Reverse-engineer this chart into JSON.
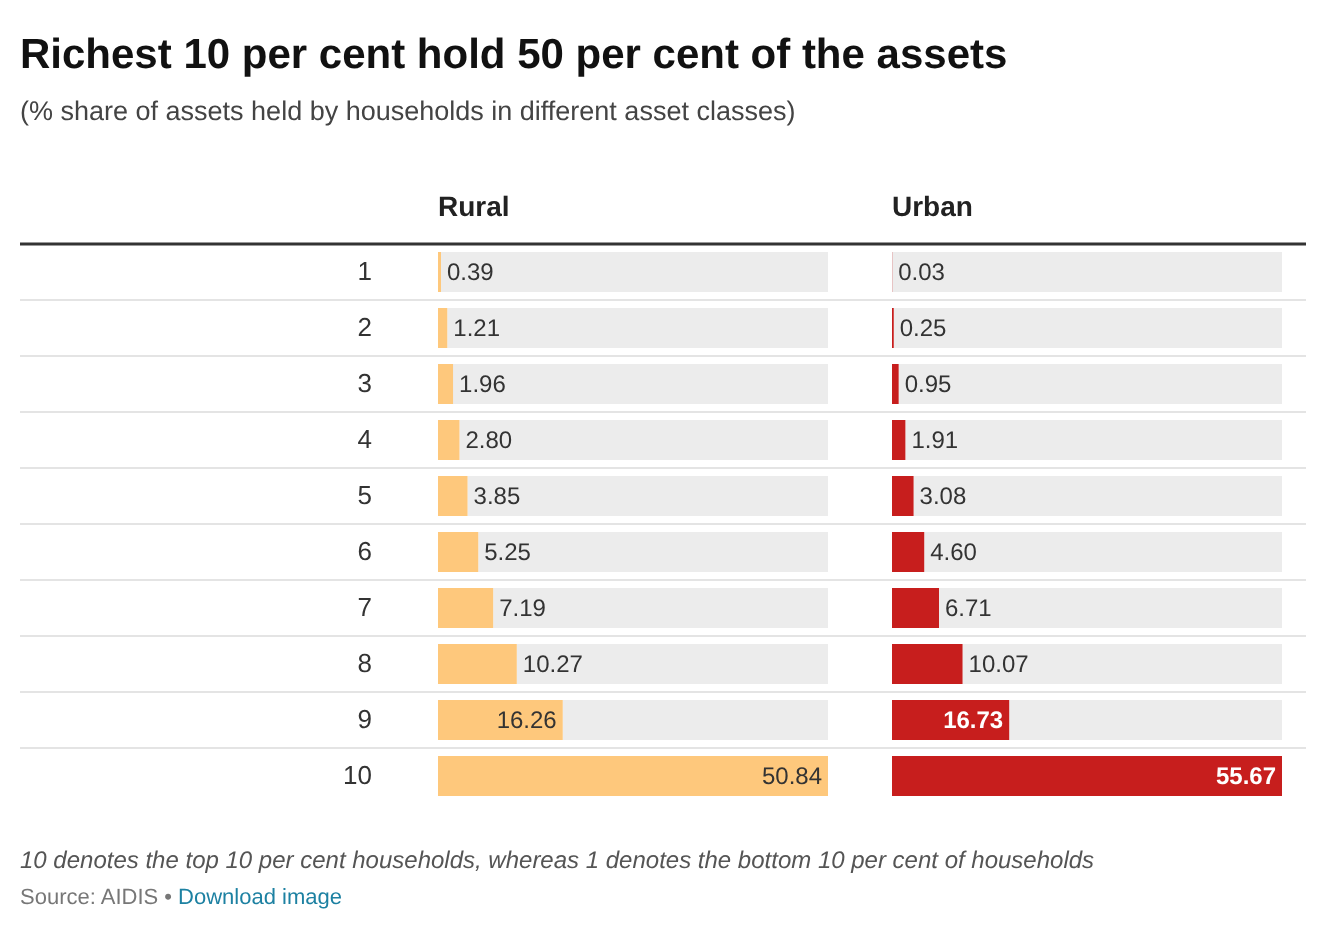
{
  "chart_data": [
    {
      "type": "bar",
      "orientation": "horizontal",
      "title": "Richest 10 per cent hold 50 per cent of the assets",
      "subtitle": "(% share of assets held by households in different asset classes)",
      "xlabel": "Rural",
      "categories": [
        "1",
        "2",
        "3",
        "4",
        "5",
        "6",
        "7",
        "8",
        "9",
        "10"
      ],
      "values": [
        0.39,
        1.21,
        1.96,
        2.8,
        3.85,
        5.25,
        7.19,
        10.27,
        16.26,
        50.84
      ],
      "value_labels": [
        "0.39",
        "1.21",
        "1.96",
        "2.80",
        "3.85",
        "5.25",
        "7.19",
        "10.27",
        "16.26",
        "50.84"
      ],
      "color": "#fec87c",
      "annotations": [
        "10 denotes the top 10 per cent households, whereas 1 denotes the bottom 10 per cent of households",
        "Source: AIDIS •",
        "Download image"
      ]
    },
    {
      "type": "bar",
      "orientation": "horizontal",
      "xlabel": "Urban",
      "categories": [
        "1",
        "2",
        "3",
        "4",
        "5",
        "6",
        "7",
        "8",
        "9",
        "10"
      ],
      "tick_labels": false,
      "values": [
        0.03,
        0.25,
        0.95,
        1.91,
        3.08,
        4.6,
        6.71,
        10.07,
        16.73,
        55.67
      ],
      "value_labels": [
        "0.03",
        "0.25",
        "0.95",
        "1.91",
        "3.08",
        "4.60",
        "6.71",
        "10.07",
        "16.73",
        "55.67"
      ],
      "color": "#c71e1d"
    }
  ]
}
